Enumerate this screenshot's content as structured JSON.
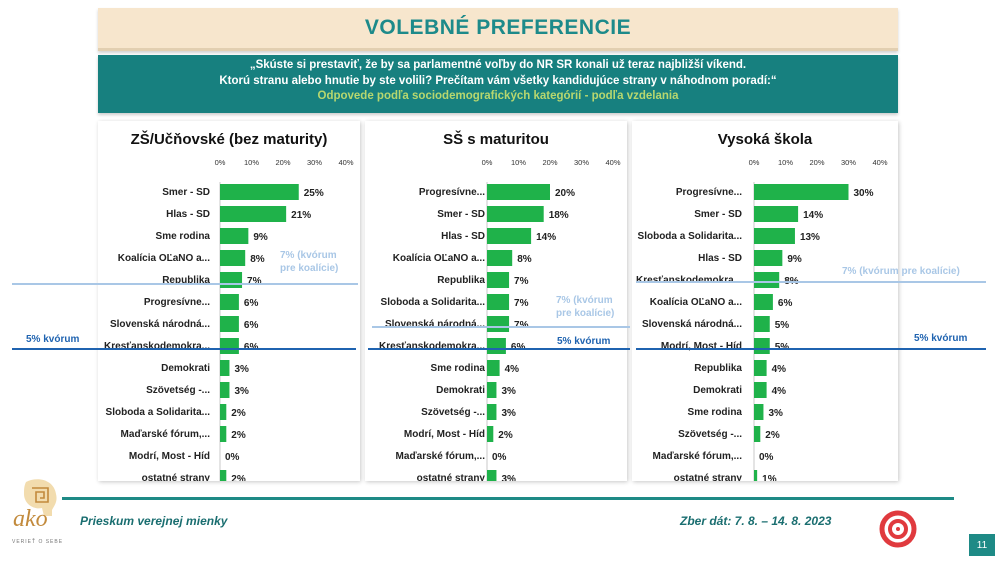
{
  "title": "VOLEBNÉ PREFERENCIE",
  "question": {
    "line1": "„Skúste si prestaviť, že by sa parlamentné voľby do NR SR konali už teraz najbližší víkend.",
    "line2": "Ktorú stranu alebo hnutie by ste volili? Prečítam vám všetky kandidujúce strany v náhodnom poradí:“",
    "subtitle": "Odpovede podľa sociodemografických kategórií - podľa vzdelania"
  },
  "quorum_labels": {
    "q5_panel1": "5% kvórum",
    "q5_panel2": "5% kvórum",
    "q5_panel3": "5% kvórum",
    "q7_panel1_line1": "7% (kvórum",
    "q7_panel1_line2": "pre koalície)",
    "q7_panel2_line1": "7% (kvórum",
    "q7_panel2_line2": "pre koalície)",
    "q7_panel3": "7% (kvórum pre koalície)"
  },
  "colors": {
    "bar": "#1fb24a",
    "quorum5": "#1f63b0",
    "quorum7": "#a9c7e6",
    "teal": "#17807f"
  },
  "footer": {
    "left": "Prieskum verejnej mienky",
    "right": "Zber dát: 7. 8. – 14. 8. 2023",
    "page": "11"
  },
  "logo": {
    "name": "ako",
    "tagline": "VERIEŤ O SEBE",
    "icon": "ako-spiral-head-logo",
    "partner_icon": "ovko-swirl-logo"
  },
  "chart_data": [
    {
      "type": "bar",
      "orientation": "horizontal",
      "title": "ZŠ/Učňovské (bez maturity)",
      "xlim": [
        0,
        40
      ],
      "ticks": [
        "0%",
        "10%",
        "20%",
        "30%",
        "40%"
      ],
      "categories": [
        "Smer - SD",
        "Hlas - SD",
        "Sme rodina",
        "Koalícia OĽaNO a...",
        "Republika",
        "Progresívne...",
        "Slovenská národná...",
        "Kresťanskodemokra...",
        "Demokrati",
        "Szövetség -...",
        "Sloboda a Solidarita...",
        "Maďarské fórum,...",
        "Modrí, Most - Híd",
        "ostatné strany"
      ],
      "values": [
        25,
        21,
        9,
        8,
        7,
        6,
        6,
        6,
        3,
        3,
        2,
        2,
        0,
        2
      ],
      "labels": [
        "25%",
        "21%",
        "9%",
        "8%",
        "7%",
        "6%",
        "6%",
        "6%",
        "3%",
        "3%",
        "2%",
        "2%",
        "0%",
        "2%"
      ]
    },
    {
      "type": "bar",
      "orientation": "horizontal",
      "title": "SŠ s maturitou",
      "xlim": [
        0,
        40
      ],
      "ticks": [
        "0%",
        "10%",
        "20%",
        "30%",
        "40%"
      ],
      "categories": [
        "Progresívne...",
        "Smer - SD",
        "Hlas - SD",
        "Koalícia OĽaNO a...",
        "Republika",
        "Sloboda a Solidarita...",
        "Slovenská národná...",
        "Kresťanskodemokra...",
        "Sme rodina",
        "Demokrati",
        "Szövetség -...",
        "Modrí, Most - Híd",
        "Maďarské fórum,...",
        "ostatné strany"
      ],
      "values": [
        20,
        18,
        14,
        8,
        7,
        7,
        7,
        6,
        4,
        3,
        3,
        2,
        0,
        3
      ],
      "labels": [
        "20%",
        "18%",
        "14%",
        "8%",
        "7%",
        "7%",
        "7%",
        "6%",
        "4%",
        "3%",
        "3%",
        "2%",
        "0%",
        "3%"
      ]
    },
    {
      "type": "bar",
      "orientation": "horizontal",
      "title": "Vysoká škola",
      "xlim": [
        0,
        40
      ],
      "ticks": [
        "0%",
        "10%",
        "20%",
        "30%",
        "40%"
      ],
      "categories": [
        "Progresívne...",
        "Smer - SD",
        "Sloboda a Solidarita...",
        "Hlas - SD",
        "Kresťanskodemokra...",
        "Koalícia OĽaNO a...",
        "Slovenská národná...",
        "Modrí, Most - Híd",
        "Republika",
        "Demokrati",
        "Sme rodina",
        "Szövetség -...",
        "Maďarské fórum,...",
        "ostatné strany"
      ],
      "values": [
        30,
        14,
        13,
        9,
        8,
        6,
        5,
        5,
        4,
        4,
        3,
        2,
        0,
        1
      ],
      "labels": [
        "30%",
        "14%",
        "13%",
        "9%",
        "8%",
        "6%",
        "5%",
        "5%",
        "4%",
        "4%",
        "3%",
        "2%",
        "0%",
        "1%"
      ]
    }
  ]
}
